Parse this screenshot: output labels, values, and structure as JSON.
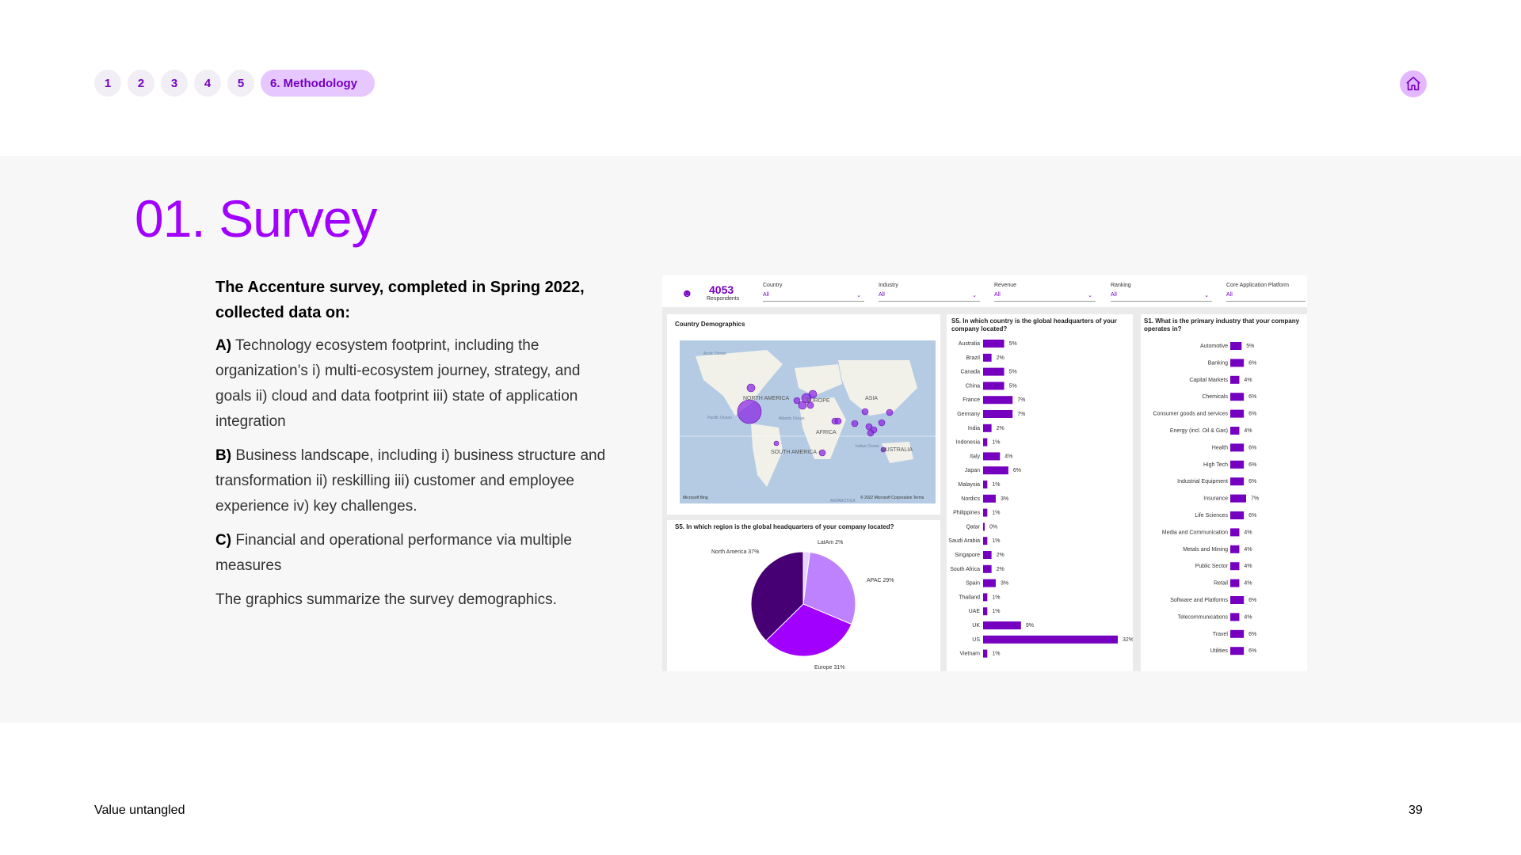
{
  "nav": {
    "items": [
      "1",
      "2",
      "3",
      "4",
      "5",
      "6. Methodology"
    ],
    "home_icon": "home-icon",
    "accent": "#a100ff"
  },
  "title": "01. Survey",
  "intro": "The Accenture survey, completed in Spring 2022, collected data on:",
  "paragraphs": [
    {
      "lead": "A)",
      "text": "Technology ecosystem footprint, including the organization’s i) multi-ecosystem journey, strategy, and goals ii) cloud and data footprint iii) state of application integration"
    },
    {
      "lead": "B)",
      "text": "Business landscape, including i) business structure and transformation ii) reskilling iii) customer and employee experience iv) key challenges."
    },
    {
      "lead": "C)",
      "text": "Financial and operational performance via multiple measures"
    },
    {
      "lead": "",
      "text": "The graphics summarize the survey demographics."
    }
  ],
  "dashboard": {
    "respondents": "4053",
    "respondents_label": "Respondents",
    "filters": [
      {
        "label": "Country",
        "value": "All"
      },
      {
        "label": "Industry",
        "value": "All"
      },
      {
        "label": "Revenue",
        "value": "All"
      },
      {
        "label": "Ranking",
        "value": "All"
      },
      {
        "label": "Core Application Platform",
        "value": "All"
      }
    ],
    "map_title": "Country Demographics",
    "map_labels": [
      "NORTH AMERICA",
      "EUROPE",
      "ASIA",
      "AFRICA",
      "SOUTH AMERICA",
      "AUSTRALIA",
      "Pacific Ocean",
      "Atlantic Ocean",
      "Indian Ocean",
      "Arctic Ocean",
      "ANTARCTICA"
    ],
    "map_credit": "© 2022 Microsoft Corporation  Terms",
    "map_logo": "Microsoft Bing",
    "pie_title": "S5. In which region is the global headquarters of your company located?",
    "country_title": "S5. In which country is the global headquarters of your company located?",
    "industry_title": "S1. What is the primary industry that your company operates in?"
  },
  "chart_data": [
    {
      "type": "pie",
      "title": "S5. In which region is the global headquarters of your company located?",
      "categories": [
        "LatAm",
        "APAC",
        "Europe",
        "North America"
      ],
      "values": [
        2,
        29,
        31,
        37
      ],
      "labels": [
        "LatAm 2%",
        "APAC 29%",
        "Europe 31%",
        "North America 37%"
      ],
      "colors": [
        "#e8d5ff",
        "#be82ff",
        "#a100ff",
        "#460073"
      ]
    },
    {
      "type": "bar",
      "orientation": "horizontal",
      "title": "S5. In which country is the global headquarters of your company located?",
      "categories": [
        "Australia",
        "Brazil",
        "Canada",
        "China",
        "France",
        "Germany",
        "India",
        "Indonesia",
        "Italy",
        "Japan",
        "Malaysia",
        "Nordics",
        "Philippines",
        "Qatar",
        "Saudi Arabia",
        "Singapore",
        "South Africa",
        "Spain",
        "Thailand",
        "UAE",
        "UK",
        "US",
        "Vietnam"
      ],
      "values": [
        5,
        2,
        5,
        5,
        7,
        7,
        2,
        1,
        4,
        6,
        1,
        3,
        1,
        0,
        1,
        2,
        2,
        3,
        1,
        1,
        9,
        32,
        1
      ],
      "labels": [
        "5%",
        "2%",
        "5%",
        "5%",
        "7%",
        "7%",
        "2%",
        "1%",
        "4%",
        "6%",
        "1%",
        "3%",
        "1%",
        "0%",
        "1%",
        "2%",
        "2%",
        "3%",
        "1%",
        "1%",
        "9%",
        "32%",
        "1%"
      ],
      "color": "#7500c0"
    },
    {
      "type": "bar",
      "orientation": "horizontal",
      "title": "S1. What is the primary industry that your company operates in?",
      "categories": [
        "Automotive",
        "Banking",
        "Capital Markets",
        "Chemicals",
        "Consumer goods and services",
        "Energy (incl. Oil & Gas)",
        "Health",
        "High Tech",
        "Industrial Equipment",
        "Insurance",
        "Life Sciences",
        "Media and Communication",
        "Metals and Mining",
        "Public Sector",
        "Retail",
        "Software and Platforms",
        "Telecommunications",
        "Travel",
        "Utilities"
      ],
      "values": [
        5,
        6,
        4,
        6,
        6,
        4,
        6,
        6,
        6,
        7,
        6,
        4,
        4,
        4,
        4,
        6,
        4,
        6,
        6
      ],
      "labels": [
        "5%",
        "6%",
        "4%",
        "6%",
        "6%",
        "4%",
        "6%",
        "6%",
        "6%",
        "7%",
        "6%",
        "4%",
        "4%",
        "4%",
        "4%",
        "6%",
        "4%",
        "6%",
        "6%"
      ],
      "color": "#7500c0"
    }
  ],
  "footer": {
    "left": "Value untangled",
    "right": "39"
  }
}
